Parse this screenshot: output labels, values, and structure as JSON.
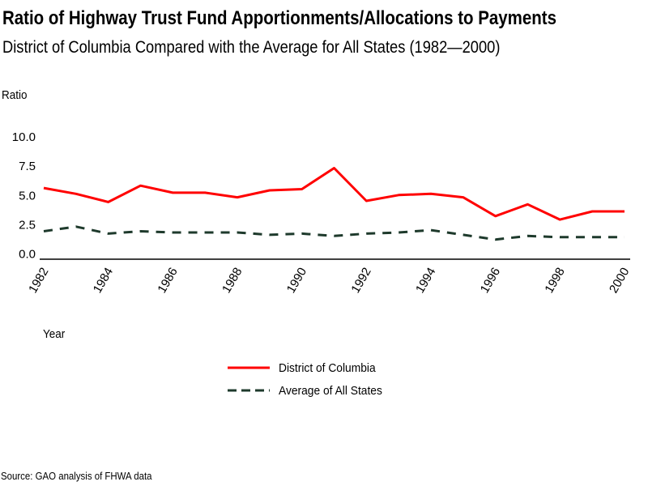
{
  "chart_data": {
    "type": "line",
    "title": "Ratio of Highway Trust Fund Apportionments/Allocations to Payments",
    "subtitle": "District of Columbia Compared with the Average for All States (1982—2000)",
    "xlabel": "Year",
    "ylabel": "Ratio",
    "ylim": [
      0,
      10
    ],
    "yticks": [
      "0.0",
      "2.5",
      "5.0",
      "7.5",
      "10.0"
    ],
    "ytick_values": [
      0,
      2.5,
      5,
      7.5,
      10
    ],
    "x": [
      1982,
      1983,
      1984,
      1985,
      1986,
      1987,
      1988,
      1989,
      1990,
      1991,
      1992,
      1993,
      1994,
      1995,
      1996,
      1997,
      1998,
      1999,
      2000
    ],
    "xticks": [
      "1982",
      "1984",
      "1986",
      "1988",
      "1990",
      "1992",
      "1994",
      "1996",
      "1998",
      "2000"
    ],
    "xtick_values": [
      1982,
      1984,
      1986,
      1988,
      1990,
      1992,
      1994,
      1996,
      1998,
      2000
    ],
    "grid": false,
    "legend_position": "bottom-center",
    "series": [
      {
        "name": "District of Columbia",
        "color": "#ff0000",
        "style": "solid",
        "values": [
          5.6,
          5.1,
          4.4,
          5.8,
          5.2,
          5.2,
          4.8,
          5.4,
          5.5,
          7.3,
          4.5,
          5.0,
          5.1,
          4.8,
          3.2,
          4.2,
          2.9,
          3.6,
          3.6
        ]
      },
      {
        "name": "Average of All States",
        "color": "#1e3a2c",
        "style": "dashed",
        "values": [
          1.9,
          2.3,
          1.7,
          1.9,
          1.8,
          1.8,
          1.8,
          1.6,
          1.7,
          1.5,
          1.7,
          1.8,
          2.0,
          1.6,
          1.2,
          1.5,
          1.4,
          1.4,
          1.4
        ]
      }
    ],
    "source": "Source: GAO analysis of FHWA data"
  }
}
